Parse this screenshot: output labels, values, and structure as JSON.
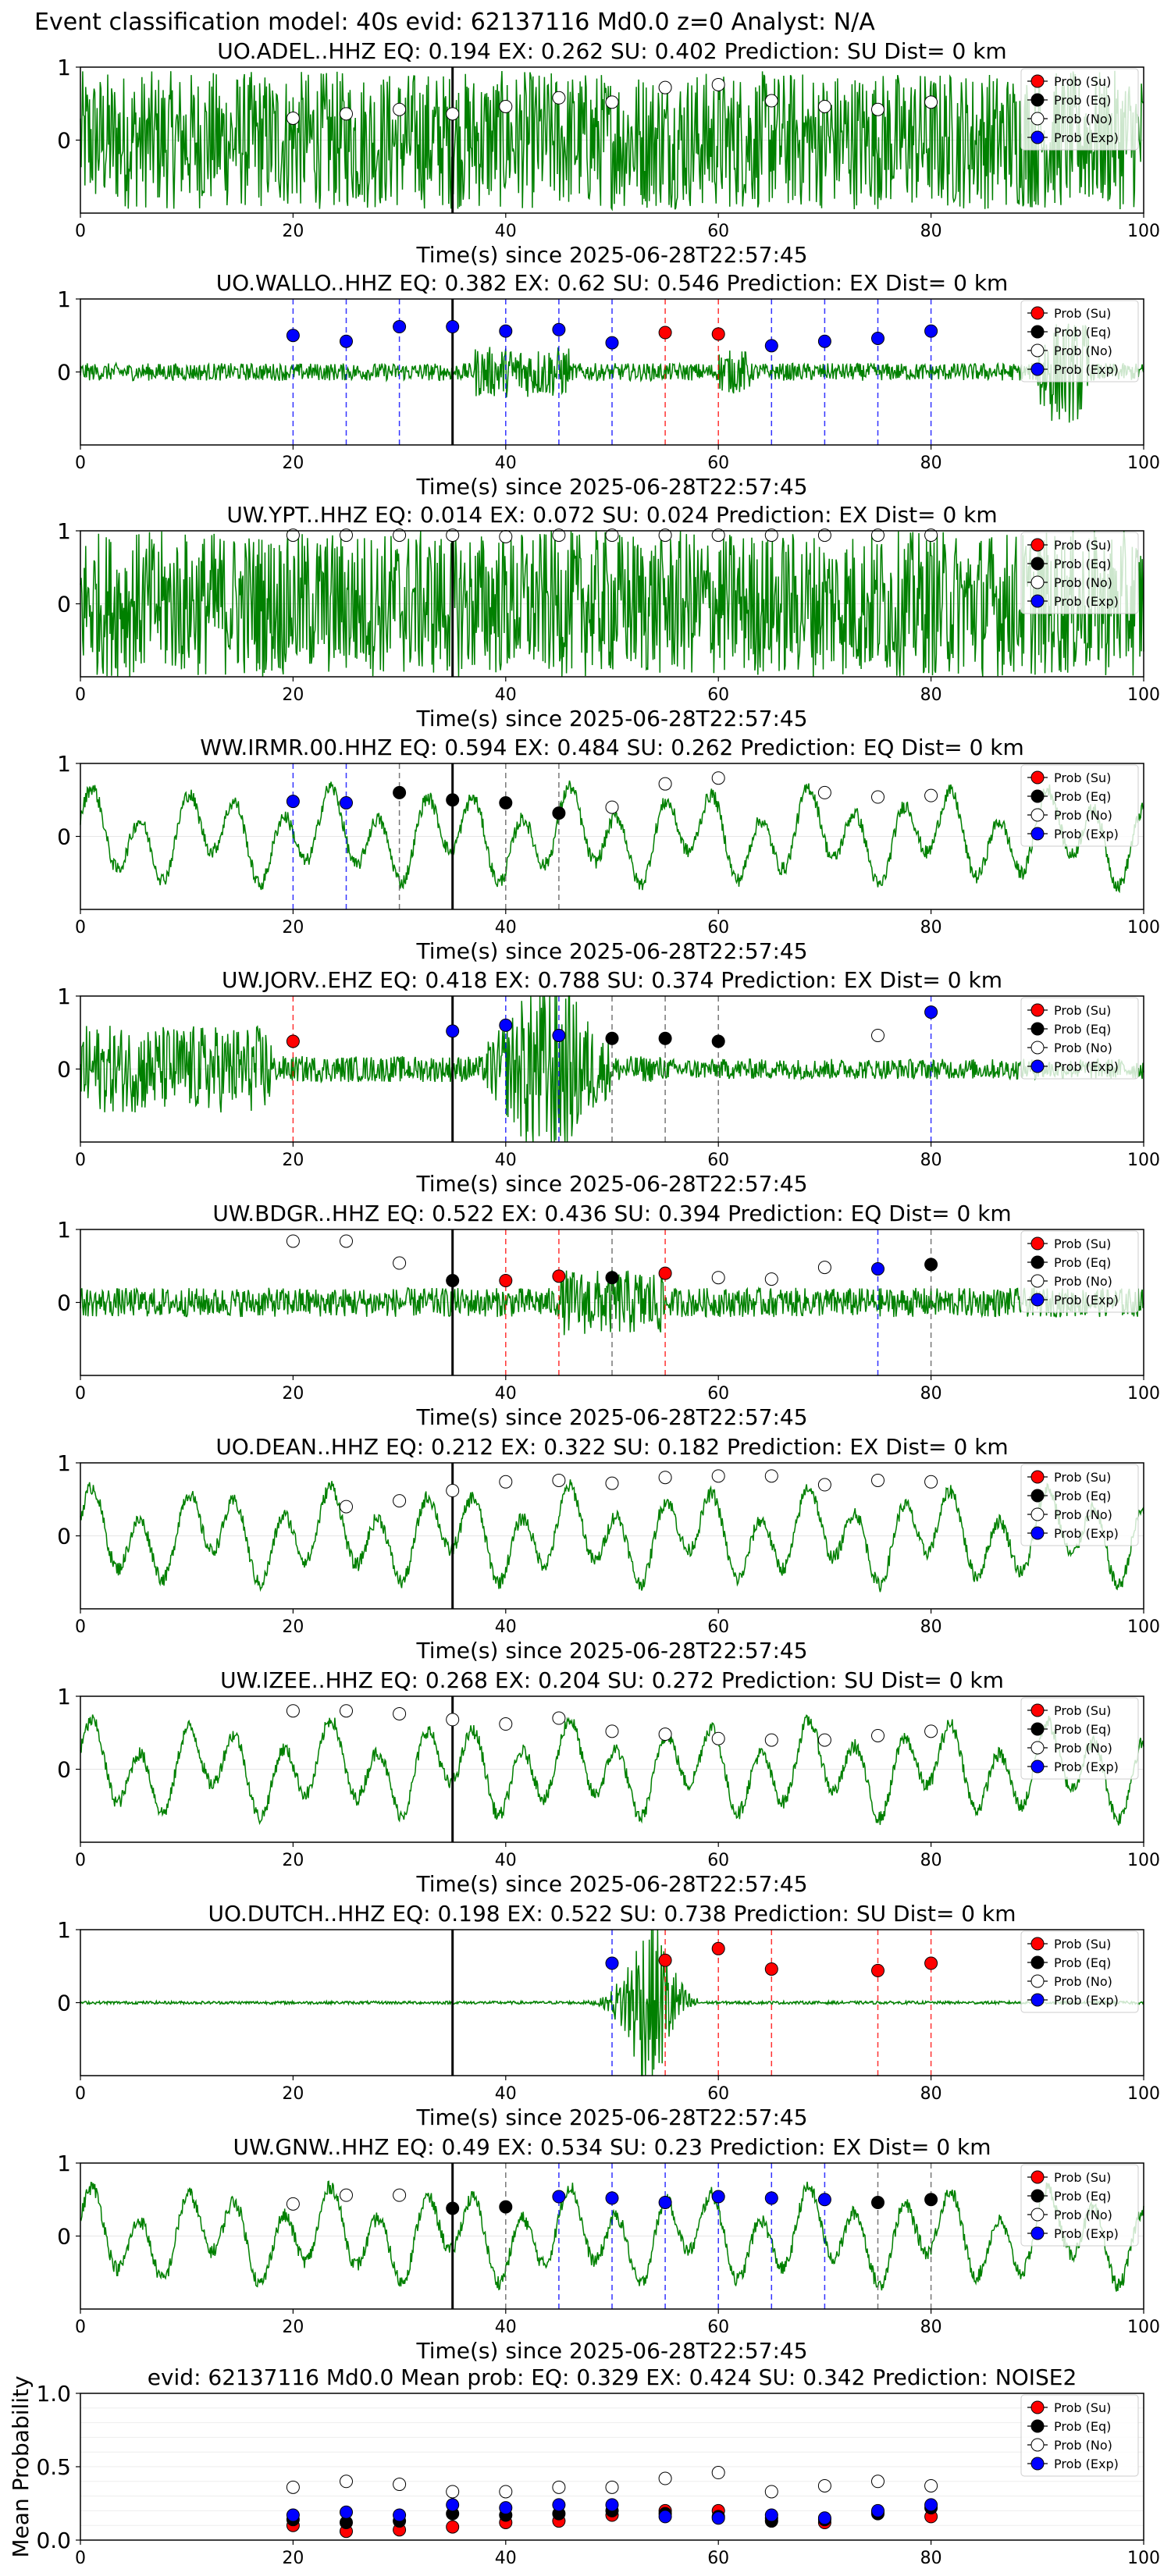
{
  "figure_title": "Event classification model: 40s evid: 62137116 Md0.0 z=0 Analyst: N/A",
  "legend_labels": [
    "Prob (Su)",
    "Prob (Eq)",
    "Prob (No)",
    "Prob (Exp)"
  ],
  "colors": {
    "su": "#ff0000",
    "eq": "#000000",
    "no": "#ffffff",
    "exp": "#0000ff",
    "waveform": "#008000",
    "pick": "#000000"
  },
  "chart_data": [
    {
      "type": "line",
      "station": "UO.ADEL..HHZ",
      "eq": "0.194",
      "ex": "0.262",
      "su": "0.402",
      "prediction": "SU",
      "dist": "0",
      "xlabel": "Time(s) since 2025-06-28T22:57:45",
      "xlim": [
        0,
        100
      ],
      "xticks": [
        0,
        20,
        40,
        60,
        80,
        100
      ],
      "yticks": [
        0,
        1
      ],
      "waveform_style": "noise_high",
      "pick_time": 35,
      "points": [
        {
          "t": 20,
          "p": 0.3,
          "c": "no"
        },
        {
          "t": 25,
          "p": 0.36,
          "c": "no"
        },
        {
          "t": 30,
          "p": 0.42,
          "c": "no"
        },
        {
          "t": 35,
          "p": 0.36,
          "c": "no"
        },
        {
          "t": 40,
          "p": 0.46,
          "c": "no"
        },
        {
          "t": 45,
          "p": 0.58,
          "c": "no"
        },
        {
          "t": 50,
          "p": 0.52,
          "c": "no"
        },
        {
          "t": 55,
          "p": 0.72,
          "c": "no"
        },
        {
          "t": 60,
          "p": 0.76,
          "c": "no"
        },
        {
          "t": 65,
          "p": 0.54,
          "c": "no"
        },
        {
          "t": 70,
          "p": 0.46,
          "c": "no"
        },
        {
          "t": 75,
          "p": 0.42,
          "c": "no"
        },
        {
          "t": 80,
          "p": 0.52,
          "c": "no"
        }
      ]
    },
    {
      "type": "line",
      "station": "UO.WALLO..HHZ",
      "eq": "0.382",
      "ex": "0.62",
      "su": "0.546",
      "prediction": "EX",
      "dist": "0",
      "xlabel": "Time(s) since 2025-06-28T22:57:45",
      "xlim": [
        0,
        100
      ],
      "xticks": [
        0,
        20,
        40,
        60,
        80,
        100
      ],
      "yticks": [
        0,
        1
      ],
      "waveform_style": "bursts",
      "pick_time": 35,
      "points": [
        {
          "t": 20,
          "p": 0.5,
          "c": "exp"
        },
        {
          "t": 25,
          "p": 0.42,
          "c": "exp"
        },
        {
          "t": 30,
          "p": 0.62,
          "c": "exp"
        },
        {
          "t": 35,
          "p": 0.62,
          "c": "exp"
        },
        {
          "t": 40,
          "p": 0.56,
          "c": "exp"
        },
        {
          "t": 45,
          "p": 0.58,
          "c": "exp"
        },
        {
          "t": 50,
          "p": 0.4,
          "c": "exp"
        },
        {
          "t": 55,
          "p": 0.54,
          "c": "su"
        },
        {
          "t": 60,
          "p": 0.52,
          "c": "su"
        },
        {
          "t": 65,
          "p": 0.36,
          "c": "exp"
        },
        {
          "t": 70,
          "p": 0.42,
          "c": "exp"
        },
        {
          "t": 75,
          "p": 0.46,
          "c": "exp"
        },
        {
          "t": 80,
          "p": 0.56,
          "c": "exp"
        }
      ]
    },
    {
      "type": "line",
      "station": "UW.YPT..HHZ",
      "eq": "0.014",
      "ex": "0.072",
      "su": "0.024",
      "prediction": "EX",
      "dist": "0",
      "xlabel": "Time(s) since 2025-06-28T22:57:45",
      "xlim": [
        0,
        100
      ],
      "xticks": [
        0,
        20,
        40,
        60,
        80,
        100
      ],
      "yticks": [
        0,
        1
      ],
      "waveform_style": "dense",
      "pick_time": 35,
      "points": [
        {
          "t": 20,
          "p": 0.94,
          "c": "no"
        },
        {
          "t": 25,
          "p": 0.94,
          "c": "no"
        },
        {
          "t": 30,
          "p": 0.94,
          "c": "no"
        },
        {
          "t": 35,
          "p": 0.94,
          "c": "no"
        },
        {
          "t": 40,
          "p": 0.92,
          "c": "no"
        },
        {
          "t": 45,
          "p": 0.94,
          "c": "no"
        },
        {
          "t": 50,
          "p": 0.94,
          "c": "no"
        },
        {
          "t": 55,
          "p": 0.94,
          "c": "no"
        },
        {
          "t": 60,
          "p": 0.94,
          "c": "no"
        },
        {
          "t": 65,
          "p": 0.94,
          "c": "no"
        },
        {
          "t": 70,
          "p": 0.94,
          "c": "no"
        },
        {
          "t": 75,
          "p": 0.94,
          "c": "no"
        },
        {
          "t": 80,
          "p": 0.94,
          "c": "no"
        }
      ]
    },
    {
      "type": "line",
      "station": "WW.IRMR.00.HHZ",
      "eq": "0.594",
      "ex": "0.484",
      "su": "0.262",
      "prediction": "EQ",
      "dist": "0",
      "xlabel": "Time(s) since 2025-06-28T22:57:45",
      "xlim": [
        0,
        100
      ],
      "xticks": [
        0,
        20,
        40,
        60,
        80,
        100
      ],
      "yticks": [
        0,
        1
      ],
      "waveform_style": "low_freq",
      "pick_time": 35,
      "points": [
        {
          "t": 20,
          "p": 0.48,
          "c": "exp"
        },
        {
          "t": 25,
          "p": 0.46,
          "c": "exp"
        },
        {
          "t": 30,
          "p": 0.6,
          "c": "eq"
        },
        {
          "t": 35,
          "p": 0.5,
          "c": "eq"
        },
        {
          "t": 40,
          "p": 0.46,
          "c": "eq"
        },
        {
          "t": 45,
          "p": 0.32,
          "c": "eq"
        },
        {
          "t": 50,
          "p": 0.4,
          "c": "no"
        },
        {
          "t": 55,
          "p": 0.72,
          "c": "no"
        },
        {
          "t": 60,
          "p": 0.8,
          "c": "no"
        },
        {
          "t": 70,
          "p": 0.6,
          "c": "no"
        },
        {
          "t": 75,
          "p": 0.54,
          "c": "no"
        },
        {
          "t": 80,
          "p": 0.56,
          "c": "no"
        }
      ]
    },
    {
      "type": "line",
      "station": "UW.JORV..EHZ",
      "eq": "0.418",
      "ex": "0.788",
      "su": "0.374",
      "prediction": "EX",
      "dist": "0",
      "xlabel": "Time(s) since 2025-06-28T22:57:45",
      "xlim": [
        0,
        100
      ],
      "xticks": [
        0,
        20,
        40,
        60,
        80,
        100
      ],
      "yticks": [
        0,
        1
      ],
      "waveform_style": "two_events",
      "pick_time": 35,
      "points": [
        {
          "t": 20,
          "p": 0.38,
          "c": "su"
        },
        {
          "t": 35,
          "p": 0.52,
          "c": "exp"
        },
        {
          "t": 40,
          "p": 0.6,
          "c": "exp"
        },
        {
          "t": 45,
          "p": 0.46,
          "c": "exp"
        },
        {
          "t": 50,
          "p": 0.42,
          "c": "eq"
        },
        {
          "t": 55,
          "p": 0.42,
          "c": "eq"
        },
        {
          "t": 60,
          "p": 0.38,
          "c": "eq"
        },
        {
          "t": 75,
          "p": 0.46,
          "c": "no"
        },
        {
          "t": 80,
          "p": 0.78,
          "c": "exp"
        }
      ]
    },
    {
      "type": "line",
      "station": "UW.BDGR..HHZ",
      "eq": "0.522",
      "ex": "0.436",
      "su": "0.394",
      "prediction": "EQ",
      "dist": "0",
      "xlabel": "Time(s) since 2025-06-28T22:57:45",
      "xlim": [
        0,
        100
      ],
      "xticks": [
        0,
        20,
        40,
        60,
        80,
        100
      ],
      "yticks": [
        0,
        1
      ],
      "waveform_style": "noise_mid",
      "pick_time": 35,
      "points": [
        {
          "t": 20,
          "p": 0.84,
          "c": "no"
        },
        {
          "t": 25,
          "p": 0.84,
          "c": "no"
        },
        {
          "t": 30,
          "p": 0.54,
          "c": "no"
        },
        {
          "t": 35,
          "p": 0.3,
          "c": "eq"
        },
        {
          "t": 40,
          "p": 0.3,
          "c": "su"
        },
        {
          "t": 45,
          "p": 0.36,
          "c": "su"
        },
        {
          "t": 50,
          "p": 0.34,
          "c": "eq"
        },
        {
          "t": 55,
          "p": 0.4,
          "c": "su"
        },
        {
          "t": 60,
          "p": 0.34,
          "c": "no"
        },
        {
          "t": 65,
          "p": 0.32,
          "c": "no"
        },
        {
          "t": 70,
          "p": 0.48,
          "c": "no"
        },
        {
          "t": 75,
          "p": 0.46,
          "c": "exp"
        },
        {
          "t": 80,
          "p": 0.52,
          "c": "eq"
        }
      ]
    },
    {
      "type": "line",
      "station": "UO.DEAN..HHZ",
      "eq": "0.212",
      "ex": "0.322",
      "su": "0.182",
      "prediction": "EX",
      "dist": "0",
      "xlabel": "Time(s) since 2025-06-28T22:57:45",
      "xlim": [
        0,
        100
      ],
      "xticks": [
        0,
        20,
        40,
        60,
        80,
        100
      ],
      "yticks": [
        0,
        1
      ],
      "waveform_style": "low_freq",
      "pick_time": 35,
      "points": [
        {
          "t": 25,
          "p": 0.4,
          "c": "no"
        },
        {
          "t": 30,
          "p": 0.48,
          "c": "no"
        },
        {
          "t": 35,
          "p": 0.62,
          "c": "no"
        },
        {
          "t": 40,
          "p": 0.74,
          "c": "no"
        },
        {
          "t": 45,
          "p": 0.76,
          "c": "no"
        },
        {
          "t": 50,
          "p": 0.72,
          "c": "no"
        },
        {
          "t": 55,
          "p": 0.8,
          "c": "no"
        },
        {
          "t": 60,
          "p": 0.82,
          "c": "no"
        },
        {
          "t": 65,
          "p": 0.82,
          "c": "no"
        },
        {
          "t": 70,
          "p": 0.7,
          "c": "no"
        },
        {
          "t": 75,
          "p": 0.76,
          "c": "no"
        },
        {
          "t": 80,
          "p": 0.74,
          "c": "no"
        }
      ]
    },
    {
      "type": "line",
      "station": "UW.IZEE..HHZ",
      "eq": "0.268",
      "ex": "0.204",
      "su": "0.272",
      "prediction": "SU",
      "dist": "0",
      "xlabel": "Time(s) since 2025-06-28T22:57:45",
      "xlim": [
        0,
        100
      ],
      "xticks": [
        0,
        20,
        40,
        60,
        80,
        100
      ],
      "yticks": [
        0,
        1
      ],
      "waveform_style": "low_freq",
      "pick_time": 35,
      "points": [
        {
          "t": 20,
          "p": 0.8,
          "c": "no"
        },
        {
          "t": 25,
          "p": 0.8,
          "c": "no"
        },
        {
          "t": 30,
          "p": 0.76,
          "c": "no"
        },
        {
          "t": 35,
          "p": 0.68,
          "c": "no"
        },
        {
          "t": 40,
          "p": 0.62,
          "c": "no"
        },
        {
          "t": 45,
          "p": 0.7,
          "c": "no"
        },
        {
          "t": 50,
          "p": 0.52,
          "c": "no"
        },
        {
          "t": 55,
          "p": 0.48,
          "c": "no"
        },
        {
          "t": 60,
          "p": 0.42,
          "c": "no"
        },
        {
          "t": 65,
          "p": 0.4,
          "c": "no"
        },
        {
          "t": 70,
          "p": 0.4,
          "c": "no"
        },
        {
          "t": 75,
          "p": 0.46,
          "c": "no"
        },
        {
          "t": 80,
          "p": 0.52,
          "c": "no"
        }
      ]
    },
    {
      "type": "line",
      "station": "UO.DUTCH..HHZ",
      "eq": "0.198",
      "ex": "0.522",
      "su": "0.738",
      "prediction": "SU",
      "dist": "0",
      "xlabel": "Time(s) since 2025-06-28T22:57:45",
      "xlim": [
        0,
        100
      ],
      "xticks": [
        0,
        20,
        40,
        60,
        80,
        100
      ],
      "yticks": [
        0,
        1
      ],
      "waveform_style": "quiet_burst",
      "pick_time": 35,
      "points": [
        {
          "t": 50,
          "p": 0.54,
          "c": "exp"
        },
        {
          "t": 55,
          "p": 0.58,
          "c": "su"
        },
        {
          "t": 60,
          "p": 0.74,
          "c": "su"
        },
        {
          "t": 65,
          "p": 0.46,
          "c": "su"
        },
        {
          "t": 75,
          "p": 0.44,
          "c": "su"
        },
        {
          "t": 80,
          "p": 0.54,
          "c": "su"
        }
      ]
    },
    {
      "type": "line",
      "station": "UW.GNW..HHZ",
      "eq": "0.49",
      "ex": "0.534",
      "su": "0.23",
      "prediction": "EX",
      "dist": "0",
      "xlabel": "Time(s) since 2025-06-28T22:57:45",
      "xlim": [
        0,
        100
      ],
      "xticks": [
        0,
        20,
        40,
        60,
        80,
        100
      ],
      "yticks": [
        0,
        1
      ],
      "waveform_style": "low_freq",
      "pick_time": 35,
      "points": [
        {
          "t": 20,
          "p": 0.44,
          "c": "no"
        },
        {
          "t": 25,
          "p": 0.56,
          "c": "no"
        },
        {
          "t": 30,
          "p": 0.56,
          "c": "no"
        },
        {
          "t": 35,
          "p": 0.38,
          "c": "eq"
        },
        {
          "t": 40,
          "p": 0.4,
          "c": "eq"
        },
        {
          "t": 45,
          "p": 0.54,
          "c": "exp"
        },
        {
          "t": 50,
          "p": 0.52,
          "c": "exp"
        },
        {
          "t": 55,
          "p": 0.46,
          "c": "exp"
        },
        {
          "t": 60,
          "p": 0.54,
          "c": "exp"
        },
        {
          "t": 65,
          "p": 0.52,
          "c": "exp"
        },
        {
          "t": 70,
          "p": 0.5,
          "c": "exp"
        },
        {
          "t": 75,
          "p": 0.46,
          "c": "eq"
        },
        {
          "t": 80,
          "p": 0.5,
          "c": "eq"
        }
      ]
    },
    {
      "type": "scatter",
      "title": "evid: 62137116  Md0.0   Mean prob:   EQ: 0.329  EX: 0.424  SU: 0.342   Prediction: NOISE2",
      "ylabel": "Mean Probability",
      "xlim": [
        0,
        100
      ],
      "ylim": [
        0,
        1
      ],
      "xticks": [
        0,
        20,
        40,
        60,
        80,
        100
      ],
      "yticks": [
        "0.0",
        "0.5",
        "1.0"
      ],
      "t": [
        20,
        25,
        30,
        35,
        40,
        45,
        50,
        55,
        60,
        65,
        70,
        75,
        80
      ],
      "series": [
        {
          "name": "Prob (Su)",
          "key": "su",
          "values": [
            0.1,
            0.06,
            0.07,
            0.09,
            0.12,
            0.13,
            0.17,
            0.2,
            0.2,
            0.15,
            0.12,
            0.19,
            0.16
          ]
        },
        {
          "name": "Prob (Eq)",
          "key": "eq",
          "values": [
            0.14,
            0.12,
            0.13,
            0.18,
            0.17,
            0.18,
            0.2,
            0.18,
            0.16,
            0.13,
            0.14,
            0.18,
            0.22
          ]
        },
        {
          "name": "Prob (No)",
          "key": "no",
          "values": [
            0.36,
            0.4,
            0.38,
            0.33,
            0.33,
            0.36,
            0.36,
            0.42,
            0.46,
            0.33,
            0.37,
            0.4,
            0.37
          ]
        },
        {
          "name": "Prob (Exp)",
          "key": "exp",
          "values": [
            0.17,
            0.19,
            0.17,
            0.24,
            0.22,
            0.24,
            0.24,
            0.16,
            0.15,
            0.17,
            0.15,
            0.2,
            0.24
          ]
        }
      ]
    }
  ]
}
